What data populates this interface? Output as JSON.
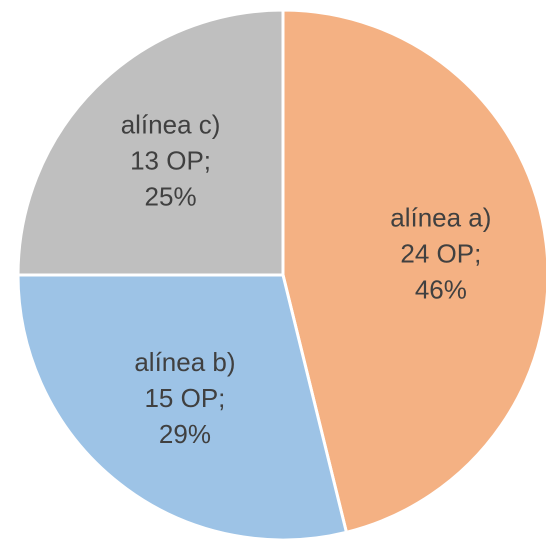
{
  "chart_data": {
    "type": "pie",
    "categories": [
      "alínea a)",
      "alínea b)",
      "alínea c)"
    ],
    "values": [
      24,
      15,
      13
    ],
    "value_labels": [
      "24 OP;",
      "15 OP;",
      "13 OP;"
    ],
    "shares": [
      46,
      29,
      25
    ],
    "share_labels": [
      "46%",
      "29%",
      "25%"
    ],
    "colors": [
      "#f4b183",
      "#9dc3e6",
      "#bfbfbf"
    ]
  }
}
